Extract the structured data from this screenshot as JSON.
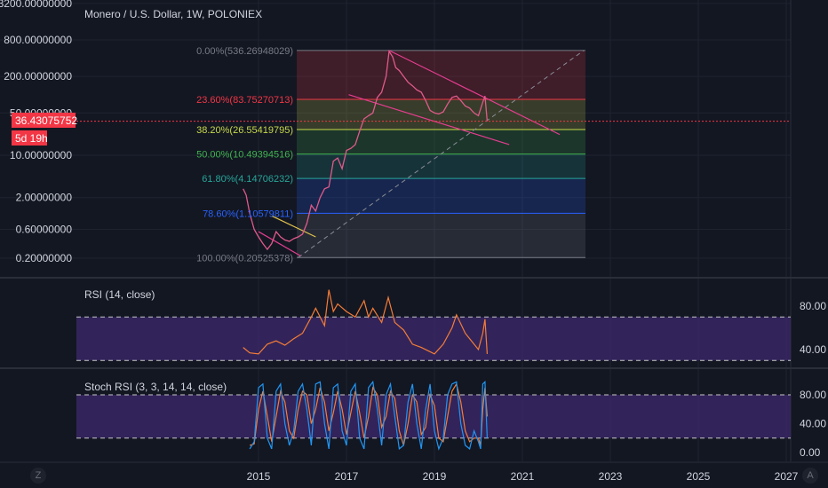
{
  "chart_title": "Monero / U.S. Dollar, 1W, POLONIEX",
  "price_badge": {
    "value": "36.43075752",
    "countdown": "5d 19h",
    "color": "#f23645"
  },
  "rsi_title": "RSI (14, close)",
  "stoch_title": "Stoch RSI (3, 3, 14, 14, close)",
  "footer": {
    "left_icon": "Z",
    "right_icon": "A"
  },
  "colors": {
    "price_line": "#e05a8a",
    "rsi_line": "#f57c37",
    "stoch_k": "#2196f3",
    "stoch_d": "#f57c37",
    "band": "#3d2a6e",
    "trendline": "#e53d8f",
    "wedge": "#e0c14a"
  },
  "chart_data": [
    {
      "type": "line",
      "name": "price",
      "title": "Monero / U.S. Dollar, 1W, POLONIEX",
      "scale": "log",
      "y_ticks": [
        {
          "value": 3200,
          "label": "3200.00000000"
        },
        {
          "value": 800,
          "label": "800.00000000"
        },
        {
          "value": 200,
          "label": "200.00000000"
        },
        {
          "value": 50,
          "label": "50.00000000"
        },
        {
          "value": 10,
          "label": "10.00000000"
        },
        {
          "value": 2,
          "label": "2.00000000"
        },
        {
          "value": 0.6,
          "label": "0.60000000"
        },
        {
          "value": 0.2,
          "label": "0.20000000"
        }
      ],
      "x_ticks": [
        {
          "value": 2015,
          "label": "2015"
        },
        {
          "value": 2017,
          "label": "2017"
        },
        {
          "value": 2019,
          "label": "2019"
        },
        {
          "value": 2021,
          "label": "2021"
        },
        {
          "value": 2023,
          "label": "2023"
        },
        {
          "value": 2025,
          "label": "2025"
        },
        {
          "value": 2027,
          "label": "2027"
        }
      ],
      "x": [
        2014.65,
        2014.72,
        2014.8,
        2014.9,
        2015.0,
        2015.1,
        2015.2,
        2015.3,
        2015.4,
        2015.5,
        2015.6,
        2015.7,
        2015.8,
        2015.9,
        2016.0,
        2016.1,
        2016.2,
        2016.3,
        2016.4,
        2016.5,
        2016.6,
        2016.7,
        2016.8,
        2016.9,
        2017.0,
        2017.1,
        2017.2,
        2017.3,
        2017.4,
        2017.5,
        2017.6,
        2017.7,
        2017.8,
        2017.9,
        2017.97,
        2018.05,
        2018.12,
        2018.2,
        2018.3,
        2018.4,
        2018.5,
        2018.6,
        2018.7,
        2018.8,
        2018.9,
        2019.0,
        2019.1,
        2019.2,
        2019.3,
        2019.4,
        2019.5,
        2019.6,
        2019.7,
        2019.8,
        2019.9,
        2020.0,
        2020.1,
        2020.15,
        2020.2
      ],
      "values": [
        2.8,
        2.2,
        1.1,
        0.6,
        0.45,
        0.35,
        0.28,
        0.35,
        0.55,
        0.45,
        0.4,
        0.38,
        0.42,
        0.45,
        0.5,
        0.75,
        1.5,
        1.2,
        2.0,
        2.8,
        3.0,
        8.0,
        9.0,
        6.0,
        12.0,
        13.0,
        15.0,
        25.0,
        40.0,
        45.0,
        50.0,
        90.0,
        110.0,
        200.0,
        520.0,
        420.0,
        280.0,
        250.0,
        200.0,
        160.0,
        140.0,
        120.0,
        110.0,
        80.0,
        55.0,
        50.0,
        48.0,
        52.0,
        70.0,
        90.0,
        95.0,
        80.0,
        65.0,
        60.0,
        50.0,
        45.0,
        75.0,
        95.0,
        36.43
      ],
      "fib_levels": [
        {
          "label": "0.00%(536.26948029)",
          "value": 536.26948029,
          "color": "#787b86"
        },
        {
          "label": "23.60%(83.75270713)",
          "value": 83.75270713,
          "color": "#f23645"
        },
        {
          "label": "38.20%(26.55419795)",
          "value": 26.55419795,
          "color": "#c7d94a"
        },
        {
          "label": "50.00%(10.49394516)",
          "value": 10.49394516,
          "color": "#3fb34f"
        },
        {
          "label": "61.80%(4.14706232)",
          "value": 4.14706232,
          "color": "#26a69a"
        },
        {
          "label": "78.60%(1.10579811)",
          "value": 1.10579811,
          "color": "#2962ff"
        },
        {
          "label": "100.00%(0.20525378)",
          "value": 0.20525378,
          "color": "#787b86"
        }
      ],
      "current_price": 36.43075752
    },
    {
      "type": "line",
      "name": "rsi",
      "title": "RSI (14, close)",
      "y_ticks": [
        {
          "value": 80,
          "label": "80.00"
        },
        {
          "value": 40,
          "label": "40.00"
        }
      ],
      "band": [
        30,
        70
      ],
      "x": [
        2014.65,
        2014.8,
        2015.0,
        2015.2,
        2015.4,
        2015.6,
        2015.8,
        2016.0,
        2016.2,
        2016.3,
        2016.5,
        2016.6,
        2016.7,
        2016.8,
        2017.0,
        2017.2,
        2017.4,
        2017.5,
        2017.6,
        2017.8,
        2017.95,
        2018.1,
        2018.3,
        2018.5,
        2018.7,
        2018.9,
        2019.0,
        2019.2,
        2019.4,
        2019.5,
        2019.7,
        2019.9,
        2020.0,
        2020.1,
        2020.15,
        2020.2
      ],
      "values": [
        42,
        37,
        36,
        45,
        48,
        44,
        50,
        55,
        70,
        78,
        62,
        95,
        75,
        82,
        75,
        70,
        85,
        70,
        78,
        65,
        88,
        65,
        58,
        45,
        42,
        38,
        36,
        45,
        60,
        72,
        55,
        45,
        40,
        55,
        68,
        36
      ]
    },
    {
      "type": "line",
      "name": "stoch_rsi",
      "title": "Stoch RSI (3, 3, 14, 14, close)",
      "y_ticks": [
        {
          "value": 80,
          "label": "80.00"
        },
        {
          "value": 40,
          "label": "40.00"
        },
        {
          "value": 0,
          "label": "0.00"
        }
      ],
      "band": [
        20,
        80
      ],
      "x": [
        2014.8,
        2014.9,
        2015.0,
        2015.1,
        2015.2,
        2015.3,
        2015.4,
        2015.5,
        2015.6,
        2015.7,
        2015.8,
        2015.9,
        2016.0,
        2016.1,
        2016.2,
        2016.3,
        2016.4,
        2016.5,
        2016.6,
        2016.7,
        2016.8,
        2016.9,
        2017.0,
        2017.1,
        2017.2,
        2017.3,
        2017.4,
        2017.5,
        2017.6,
        2017.7,
        2017.8,
        2017.9,
        2018.0,
        2018.1,
        2018.2,
        2018.3,
        2018.4,
        2018.5,
        2018.6,
        2018.7,
        2018.8,
        2018.9,
        2019.0,
        2019.1,
        2019.2,
        2019.3,
        2019.4,
        2019.5,
        2019.6,
        2019.7,
        2019.8,
        2019.9,
        2020.0,
        2020.05,
        2020.1,
        2020.15,
        2020.2
      ],
      "k": [
        5,
        15,
        90,
        95,
        20,
        5,
        85,
        95,
        40,
        10,
        30,
        85,
        95,
        60,
        10,
        95,
        98,
        40,
        5,
        90,
        95,
        30,
        10,
        85,
        95,
        20,
        5,
        90,
        98,
        60,
        10,
        80,
        95,
        50,
        5,
        10,
        70,
        95,
        40,
        5,
        60,
        95,
        30,
        5,
        20,
        80,
        95,
        98,
        40,
        10,
        5,
        30,
        15,
        5,
        95,
        98,
        20
      ],
      "d": [
        10,
        12,
        60,
        85,
        50,
        15,
        50,
        85,
        70,
        30,
        20,
        60,
        85,
        80,
        40,
        60,
        90,
        70,
        30,
        55,
        85,
        60,
        25,
        55,
        85,
        55,
        20,
        50,
        90,
        80,
        35,
        50,
        85,
        75,
        30,
        10,
        40,
        80,
        70,
        25,
        35,
        80,
        65,
        20,
        15,
        50,
        85,
        95,
        70,
        30,
        15,
        20,
        20,
        10,
        60,
        90,
        50
      ]
    }
  ]
}
